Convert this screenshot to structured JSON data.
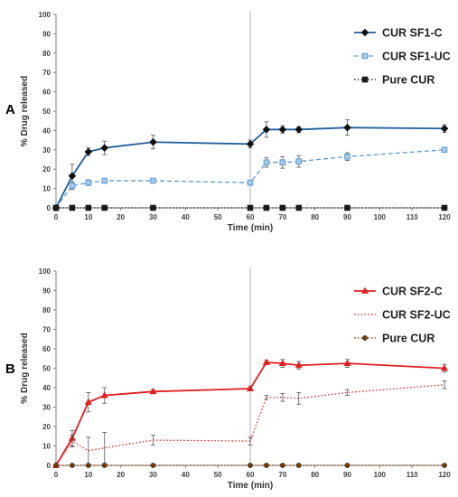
{
  "chart_data": [
    {
      "type": "line",
      "panel_label": "A",
      "xlabel": "Time (min)",
      "ylabel": "% Drug released",
      "xlim": [
        0,
        120
      ],
      "ylim": [
        0,
        100
      ],
      "x_ticks": [
        0,
        10,
        20,
        30,
        40,
        50,
        60,
        70,
        80,
        90,
        100,
        110,
        120
      ],
      "y_ticks": [
        0,
        10,
        20,
        30,
        40,
        50,
        60,
        70,
        80,
        90,
        100
      ],
      "grid": false,
      "vertical_marker_x": 60,
      "legend_position": "top-right",
      "series": [
        {
          "name": "CUR SF1-C",
          "color": "#1f5f9c",
          "line_style": "solid",
          "marker": "diamond",
          "x": [
            0,
            5,
            10,
            15,
            30,
            60,
            65,
            70,
            75,
            90,
            120
          ],
          "y": [
            0,
            16.5,
            29,
            31,
            34,
            33,
            40.5,
            40.5,
            40.5,
            41.5,
            41
          ],
          "err": [
            0,
            6,
            2,
            3.5,
            3.5,
            2,
            4,
            2,
            1.5,
            4,
            2
          ]
        },
        {
          "name": "CUR SF1-UC",
          "color": "#5a9bd5",
          "line_style": "dashed",
          "marker": "square",
          "x": [
            0,
            5,
            10,
            15,
            30,
            60,
            65,
            70,
            75,
            90,
            120
          ],
          "y": [
            0,
            11.5,
            13,
            14,
            14,
            13,
            23.5,
            23.5,
            24,
            26.5,
            30
          ],
          "err": [
            0,
            2,
            1.5,
            1,
            1,
            1,
            2.5,
            3,
            3,
            2,
            1
          ]
        },
        {
          "name": "Pure CUR",
          "color": "#1a1a1a",
          "line_style": "dotted",
          "marker": "square",
          "x": [
            0,
            5,
            10,
            15,
            30,
            60,
            65,
            70,
            75,
            90,
            120
          ],
          "y": [
            0,
            0,
            0,
            0,
            0,
            0,
            0,
            0,
            0,
            0,
            0
          ],
          "err": [
            0,
            0,
            0,
            0,
            0,
            0,
            0,
            0,
            0,
            0,
            0
          ]
        }
      ]
    },
    {
      "type": "line",
      "panel_label": "B",
      "xlabel": "Time (min)",
      "ylabel": "% Drug released",
      "xlim": [
        0,
        120
      ],
      "ylim": [
        0,
        100
      ],
      "x_ticks": [
        0,
        10,
        20,
        30,
        40,
        50,
        60,
        70,
        80,
        90,
        100,
        110,
        120
      ],
      "y_ticks": [
        0,
        10,
        20,
        30,
        40,
        50,
        60,
        70,
        80,
        90,
        100
      ],
      "grid": false,
      "vertical_marker_x": 60,
      "legend_position": "top-right",
      "series": [
        {
          "name": "CUR SF2-C",
          "color": "#e02020",
          "line_style": "solid",
          "marker": "triangle",
          "x": [
            0,
            5,
            10,
            15,
            30,
            60,
            65,
            70,
            75,
            90,
            120
          ],
          "y": [
            0,
            14,
            32.5,
            36,
            38,
            39.5,
            53,
            52.5,
            51.5,
            52.5,
            50
          ],
          "err": [
            0,
            4,
            5,
            4,
            1,
            1,
            1,
            2,
            2,
            2,
            2
          ]
        },
        {
          "name": "CUR SF2-UC",
          "color": "#e03030",
          "line_style": "dotted",
          "marker": "none",
          "x": [
            0,
            5,
            10,
            15,
            30,
            60,
            65,
            70,
            75,
            90,
            120
          ],
          "y": [
            0,
            12.5,
            7.5,
            9,
            13,
            12.5,
            35,
            35,
            34.5,
            37.5,
            41.5
          ],
          "err": [
            0,
            3,
            7,
            8,
            2.5,
            2,
            1,
            2,
            3,
            1.5,
            2
          ]
        },
        {
          "name": "Pure CUR",
          "color": "#7a3b00",
          "line_style": "dotted",
          "marker": "circle",
          "x": [
            0,
            5,
            10,
            15,
            30,
            60,
            65,
            70,
            75,
            90,
            120
          ],
          "y": [
            0,
            0,
            0,
            0,
            0,
            0,
            0,
            0,
            0,
            0,
            0
          ],
          "err": [
            0,
            0,
            0,
            0,
            0,
            0,
            0,
            0,
            0,
            0,
            0
          ]
        }
      ]
    }
  ]
}
